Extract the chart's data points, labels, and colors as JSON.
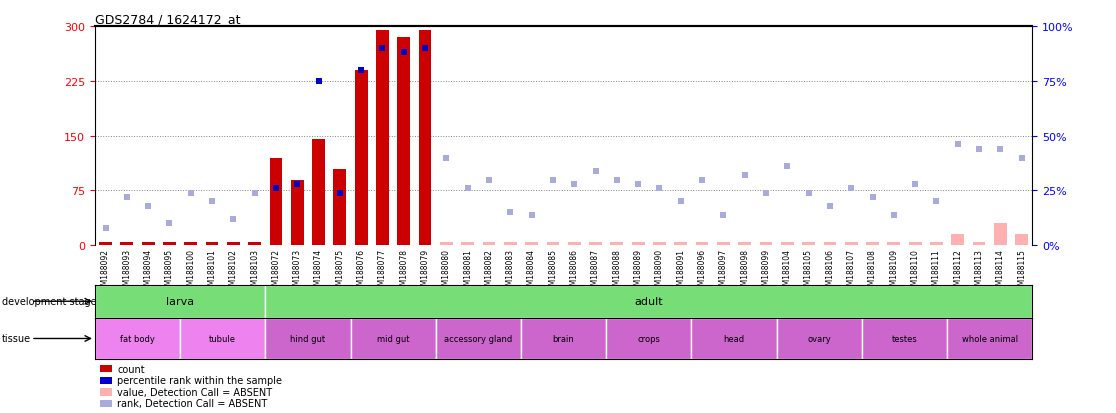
{
  "title": "GDS2784 / 1624172_at",
  "samples": [
    "GSM188092",
    "GSM188093",
    "GSM188094",
    "GSM188095",
    "GSM188100",
    "GSM188101",
    "GSM188102",
    "GSM188103",
    "GSM188072",
    "GSM188073",
    "GSM188074",
    "GSM188075",
    "GSM188076",
    "GSM188077",
    "GSM188078",
    "GSM188079",
    "GSM188080",
    "GSM188081",
    "GSM188082",
    "GSM188083",
    "GSM188084",
    "GSM188085",
    "GSM188086",
    "GSM188087",
    "GSM188088",
    "GSM188089",
    "GSM188090",
    "GSM188091",
    "GSM188096",
    "GSM188097",
    "GSM188098",
    "GSM188099",
    "GSM188104",
    "GSM188105",
    "GSM188106",
    "GSM188107",
    "GSM188108",
    "GSM188109",
    "GSM188110",
    "GSM188111",
    "GSM188112",
    "GSM188113",
    "GSM188114",
    "GSM188115"
  ],
  "count_values": [
    4,
    4,
    4,
    4,
    4,
    4,
    4,
    4,
    120,
    90,
    145,
    105,
    240,
    295,
    285,
    295,
    5,
    5,
    5,
    5,
    5,
    5,
    5,
    5,
    5,
    5,
    5,
    5,
    5,
    5,
    5,
    5,
    5,
    5,
    5,
    5,
    5,
    5,
    5,
    5,
    15,
    5,
    30,
    15
  ],
  "rank_values": [
    8,
    22,
    18,
    10,
    24,
    20,
    12,
    24,
    26,
    28,
    75,
    24,
    80,
    90,
    88,
    90,
    40,
    26,
    30,
    15,
    14,
    30,
    28,
    34,
    30,
    28,
    26,
    20,
    30,
    14,
    32,
    24,
    36,
    24,
    18,
    26,
    22,
    14,
    28,
    20,
    46,
    44,
    44,
    40
  ],
  "absent_count_indices": [
    16,
    17,
    18,
    19,
    20,
    21,
    22,
    23,
    24,
    25,
    26,
    27,
    28,
    29,
    30,
    31,
    32,
    33,
    34,
    35,
    36,
    37,
    38,
    39,
    40,
    41,
    42,
    43
  ],
  "absent_rank_indices": [
    0,
    1,
    2,
    3,
    4,
    5,
    6,
    7,
    16,
    17,
    18,
    19,
    20,
    21,
    22,
    23,
    24,
    25,
    26,
    27,
    28,
    29,
    30,
    31,
    32,
    33,
    34,
    35,
    36,
    37,
    38,
    39,
    40,
    41,
    42,
    43
  ],
  "dev_stages": [
    {
      "label": "larva",
      "start": 0,
      "end": 8
    },
    {
      "label": "adult",
      "start": 8,
      "end": 44
    }
  ],
  "tissues": [
    {
      "label": "fat body",
      "start": 0,
      "end": 4,
      "bright": true
    },
    {
      "label": "tubule",
      "start": 4,
      "end": 8,
      "bright": true
    },
    {
      "label": "hind gut",
      "start": 8,
      "end": 12,
      "bright": false
    },
    {
      "label": "mid gut",
      "start": 12,
      "end": 16,
      "bright": false
    },
    {
      "label": "accessory gland",
      "start": 16,
      "end": 20,
      "bright": false
    },
    {
      "label": "brain",
      "start": 20,
      "end": 24,
      "bright": false
    },
    {
      "label": "crops",
      "start": 24,
      "end": 28,
      "bright": false
    },
    {
      "label": "head",
      "start": 28,
      "end": 32,
      "bright": false
    },
    {
      "label": "ovary",
      "start": 32,
      "end": 36,
      "bright": false
    },
    {
      "label": "testes",
      "start": 36,
      "end": 40,
      "bright": false
    },
    {
      "label": "whole animal",
      "start": 40,
      "end": 44,
      "bright": false
    }
  ],
  "ylim_left": 300,
  "yticks_left": [
    0,
    75,
    150,
    225,
    300
  ],
  "yticks_right": [
    0,
    25,
    50,
    75,
    100
  ],
  "bar_color": "#cc0000",
  "rank_color": "#0000cc",
  "absent_count_color": "#ffb0b0",
  "absent_rank_color": "#aaaadd",
  "green_color": "#77dd77",
  "bright_pink": "#ee82ee",
  "muted_pink": "#cc66cc",
  "xticklabel_bg": "#d8d8d8",
  "legend_items": [
    {
      "color": "#cc0000",
      "label": "count"
    },
    {
      "color": "#0000cc",
      "label": "percentile rank within the sample"
    },
    {
      "color": "#ffb0b0",
      "label": "value, Detection Call = ABSENT"
    },
    {
      "color": "#aaaadd",
      "label": "rank, Detection Call = ABSENT"
    }
  ]
}
